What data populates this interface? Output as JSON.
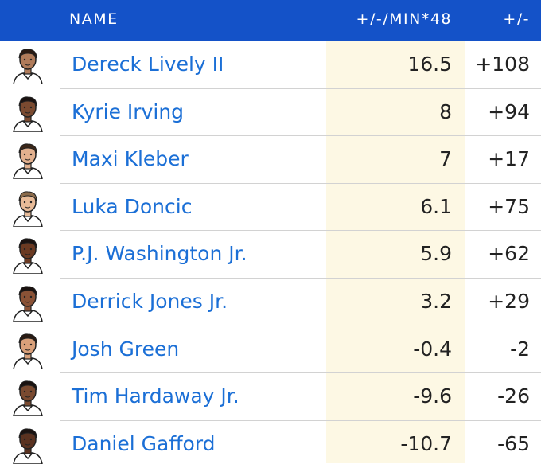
{
  "header": {
    "name": "NAME",
    "pm_per48": "+/-/MIN*48",
    "pm": "+/-"
  },
  "players": [
    {
      "name": "Dereck Lively II",
      "pm48": "16.5",
      "pm": "+108",
      "skin": "#b07b5a",
      "hair": "#2a1a12"
    },
    {
      "name": "Kyrie Irving",
      "pm48": "8",
      "pm": "+94",
      "skin": "#7a4a30",
      "hair": "#1a1210"
    },
    {
      "name": "Maxi Kleber",
      "pm48": "7",
      "pm": "+17",
      "skin": "#e2b08e",
      "hair": "#3a2618"
    },
    {
      "name": "Luka Doncic",
      "pm48": "6.1",
      "pm": "+75",
      "skin": "#e8bb98",
      "hair": "#8a6a4a"
    },
    {
      "name": "P.J. Washington Jr.",
      "pm48": "5.9",
      "pm": "+62",
      "skin": "#6b3a22",
      "hair": "#1a1210"
    },
    {
      "name": "Derrick Jones Jr.",
      "pm48": "3.2",
      "pm": "+29",
      "skin": "#8a5236",
      "hair": "#1a1210"
    },
    {
      "name": "Josh Green",
      "pm48": "-0.4",
      "pm": "-2",
      "skin": "#d9a07a",
      "hair": "#2a1a12"
    },
    {
      "name": "Tim Hardaway Jr.",
      "pm48": "-9.6",
      "pm": "-26",
      "skin": "#7a4a30",
      "hair": "#1a1210"
    },
    {
      "name": "Daniel Gafford",
      "pm48": "-10.7",
      "pm": "-65",
      "skin": "#5a3220",
      "hair": "#1a1210"
    }
  ]
}
